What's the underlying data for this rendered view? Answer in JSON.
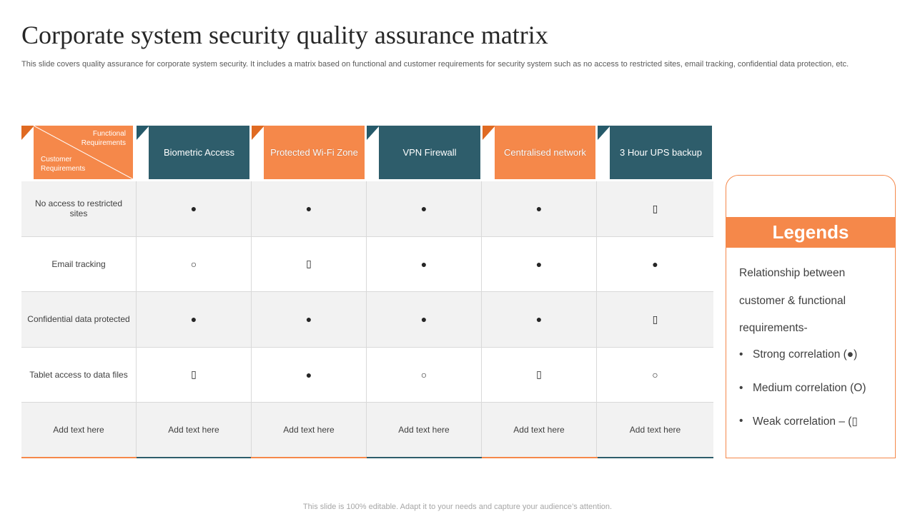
{
  "title": "Corporate system security quality assurance matrix",
  "subtitle": "This slide covers quality assurance for corporate system security. It includes a matrix based on functional and customer requirements for security system such as no access to restricted sites, email tracking, confidential data protection, etc.",
  "corner": {
    "functional_line1": "Functional",
    "functional_line2": "Requirements",
    "customer_line1": "Customer",
    "customer_line2": "Requirements"
  },
  "columns": [
    {
      "label": "Biometric Access",
      "style": "teal"
    },
    {
      "label": "Protected Wi-Fi Zone",
      "style": "orange"
    },
    {
      "label": "VPN Firewall",
      "style": "teal"
    },
    {
      "label": "Centralised network",
      "style": "orange"
    },
    {
      "label": "3 Hour UPS backup",
      "style": "teal"
    }
  ],
  "rows": [
    {
      "label": "No access to restricted sites",
      "values": [
        "●",
        "●",
        "●",
        "●",
        "▯"
      ]
    },
    {
      "label": "Email tracking",
      "values": [
        "○",
        "▯",
        "●",
        "●",
        "●"
      ]
    },
    {
      "label": "Confidential data protected",
      "values": [
        "●",
        "●",
        "●",
        "●",
        "▯"
      ]
    },
    {
      "label": "Tablet access to data files",
      "values": [
        "▯",
        "●",
        "○",
        "▯",
        "○"
      ]
    },
    {
      "label": "Add text here",
      "values": [
        "Add text here",
        "Add text here",
        "Add text here",
        "Add text here",
        "Add text here"
      ]
    }
  ],
  "legend": {
    "heading": "Legends",
    "intro_line1": "Relationship between",
    "intro_line2": "customer & functional",
    "intro_line3": "requirements-",
    "items": [
      "Strong correlation (●)",
      "Medium correlation (O)",
      "Weak correlation – (▯"
    ],
    "bullet": "•"
  },
  "footer": "This slide is 100% editable. Adapt it to your needs and capture your audience’s attention.",
  "colors": {
    "accent_orange": "#f5884a",
    "accent_teal": "#2e5d6b",
    "row_shade": "#f2f2f2"
  }
}
